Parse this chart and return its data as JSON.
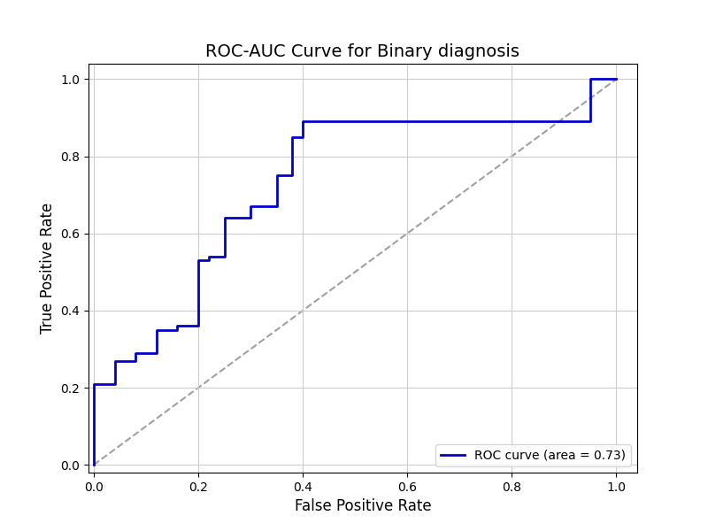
{
  "title": "ROC-AUC Curve for Binary diagnosis",
  "xlabel": "False Positive Rate",
  "ylabel": "True Positive Rate",
  "legend_label": "ROC curve (area = 0.73)",
  "roc_fpr": [
    0.0,
    0.0,
    0.04,
    0.04,
    0.08,
    0.08,
    0.12,
    0.12,
    0.16,
    0.16,
    0.2,
    0.2,
    0.22,
    0.22,
    0.25,
    0.25,
    0.3,
    0.3,
    0.35,
    0.35,
    0.38,
    0.38,
    0.4,
    0.4,
    0.6,
    0.6,
    0.95,
    0.95,
    1.0
  ],
  "roc_tpr": [
    0.0,
    0.21,
    0.21,
    0.27,
    0.27,
    0.29,
    0.29,
    0.35,
    0.35,
    0.36,
    0.36,
    0.53,
    0.53,
    0.54,
    0.54,
    0.64,
    0.64,
    0.67,
    0.67,
    0.75,
    0.75,
    0.85,
    0.85,
    0.89,
    0.89,
    0.89,
    0.89,
    1.0,
    1.0
  ],
  "diag_line": [
    0.0,
    1.0
  ],
  "roc_color": "#0000cc",
  "diag_color": "#888888",
  "roc_linewidth": 2.0,
  "diag_linewidth": 1.5,
  "xlim": [
    -0.01,
    1.04
  ],
  "ylim": [
    -0.02,
    1.04
  ],
  "xticks": [
    0.0,
    0.2,
    0.4,
    0.6,
    0.8,
    1.0
  ],
  "yticks": [
    0.0,
    0.2,
    0.4,
    0.6,
    0.8,
    1.0
  ],
  "grid": true,
  "title_fontsize": 14,
  "axis_label_fontsize": 12,
  "legend_fontsize": 10,
  "legend_loc": "lower right",
  "background_color": "#ffffff",
  "figsize": [
    8.0,
    6.0
  ],
  "dpi": 100
}
